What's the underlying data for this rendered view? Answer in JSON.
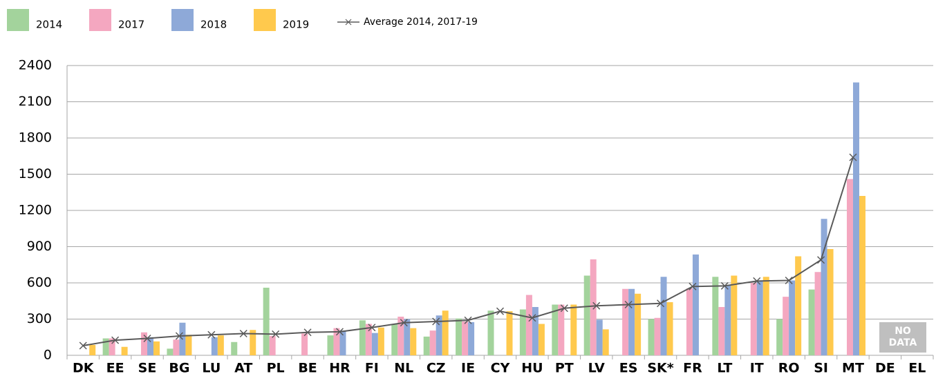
{
  "chart_data": {
    "type": "bar",
    "categories": [
      "DK",
      "EE",
      "SE",
      "BG",
      "LU",
      "AT",
      "PL",
      "BE",
      "HR",
      "FI",
      "NL",
      "CZ",
      "IE",
      "CY",
      "HU",
      "PT",
      "LV",
      "ES",
      "SK*",
      "FR",
      "LT",
      "IT",
      "RO",
      "SI",
      "MT",
      "DE",
      "EL"
    ],
    "series": [
      {
        "name": "2014",
        "color": "#a3d39c",
        "values": [
          null,
          140,
          null,
          55,
          null,
          110,
          560,
          null,
          165,
          290,
          260,
          155,
          305,
          370,
          380,
          420,
          660,
          null,
          300,
          null,
          650,
          null,
          300,
          545,
          null,
          null,
          null
        ]
      },
      {
        "name": "2017",
        "color": "#f4a7c0",
        "values": [
          null,
          140,
          190,
          130,
          null,
          null,
          160,
          180,
          225,
          260,
          320,
          205,
          280,
          null,
          500,
          420,
          795,
          550,
          310,
          555,
          400,
          600,
          485,
          690,
          1460,
          null,
          null
        ]
      },
      {
        "name": "2018",
        "color": "#8ea9d8",
        "values": [
          null,
          null,
          150,
          270,
          150,
          null,
          null,
          null,
          205,
          185,
          300,
          330,
          275,
          null,
          400,
          null,
          295,
          550,
          650,
          835,
          580,
          620,
          620,
          1130,
          2260,
          null,
          null
        ]
      },
      {
        "name": "2019",
        "color": "#ffc94d",
        "values": [
          86,
          70,
          115,
          170,
          165,
          210,
          null,
          null,
          null,
          230,
          225,
          370,
          null,
          365,
          260,
          420,
          215,
          510,
          440,
          null,
          660,
          650,
          820,
          880,
          1320,
          null,
          null
        ]
      },
      {
        "name": "Average 2014, 2017-19",
        "type": "line",
        "color": "#595959",
        "values": [
          80,
          125,
          140,
          160,
          170,
          180,
          175,
          190,
          195,
          230,
          270,
          280,
          290,
          365,
          310,
          390,
          410,
          420,
          430,
          570,
          575,
          615,
          620,
          790,
          1640,
          null,
          null
        ]
      }
    ],
    "no_data_label": "NO DATA",
    "ylim": [
      0,
      2400
    ],
    "yticks": [
      0,
      300,
      600,
      900,
      1200,
      1500,
      1800,
      2100,
      2400
    ],
    "grid": true
  }
}
